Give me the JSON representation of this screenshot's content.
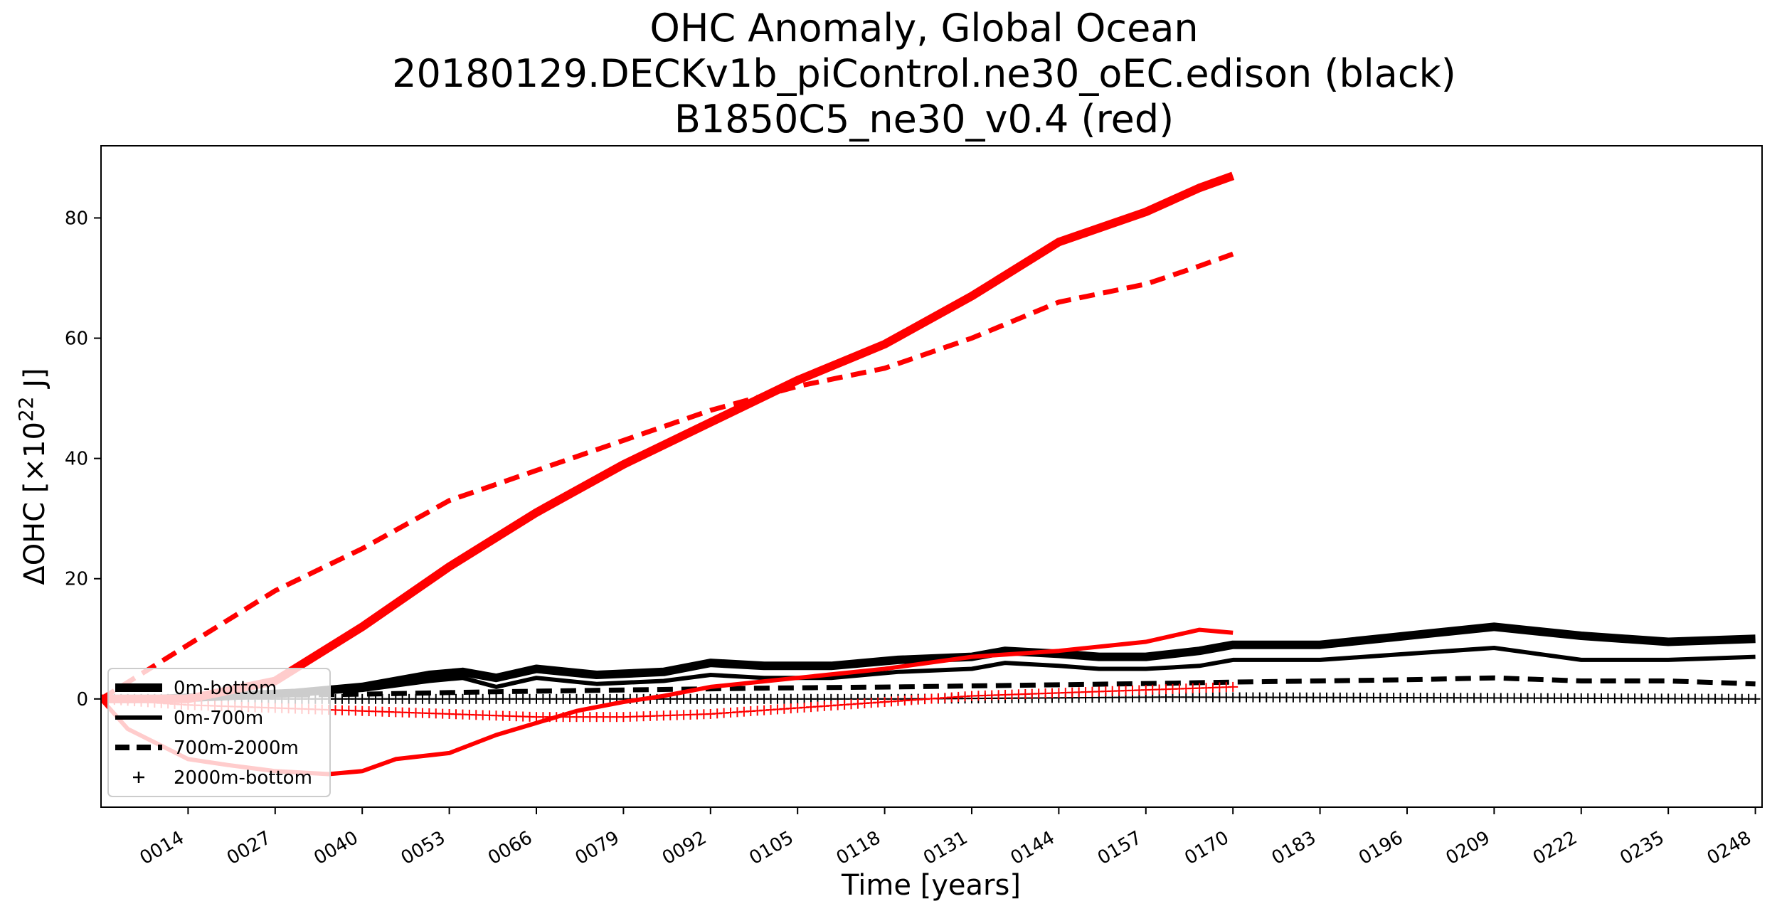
{
  "chart_data": {
    "type": "line",
    "title_lines": [
      "OHC Anomaly, Global Ocean",
      "20180129.DECKv1b_piControl.ne30_oEC.edison (black)",
      "B1850C5_ne30_v0.4 (red)"
    ],
    "xlabel": "Time [years]",
    "ylabel_main": "ΔOHC [×10",
    "ylabel_sup": "22",
    "ylabel_end": " J]",
    "xlim": [
      1,
      249
    ],
    "ylim": [
      -18,
      92
    ],
    "x_ticks": [
      14,
      27,
      40,
      53,
      66,
      79,
      92,
      105,
      118,
      131,
      144,
      157,
      170,
      183,
      196,
      209,
      222,
      235,
      248
    ],
    "x_tick_labels": [
      "0014",
      "0027",
      "0040",
      "0053",
      "0066",
      "0079",
      "0092",
      "0105",
      "0118",
      "0131",
      "0144",
      "0157",
      "0170",
      "0183",
      "0196",
      "0209",
      "0222",
      "0235",
      "0248"
    ],
    "y_ticks": [
      0,
      20,
      40,
      60,
      80
    ],
    "y_tick_labels": [
      "0",
      "20",
      "40",
      "60",
      "80"
    ],
    "grid": false,
    "legend_position": "lower-left",
    "legend": [
      {
        "label": "0m-bottom",
        "style": "thick"
      },
      {
        "label": "0m-700m",
        "style": "solid"
      },
      {
        "label": "700m-2000m",
        "style": "dashed"
      },
      {
        "label": "2000m-bottom",
        "style": "plus"
      }
    ],
    "series": [
      {
        "run": "black",
        "layer": "0m-bottom",
        "color": "#000000",
        "style": "thick",
        "x": [
          1,
          10,
          20,
          30,
          40,
          50,
          55,
          60,
          66,
          75,
          85,
          92,
          100,
          110,
          120,
          131,
          136,
          144,
          150,
          157,
          165,
          170,
          183,
          196,
          209,
          222,
          235,
          248
        ],
        "y": [
          0,
          0,
          0.5,
          1,
          2,
          4,
          4.5,
          3.5,
          5,
          4,
          4.5,
          6,
          5.5,
          5.5,
          6.5,
          7,
          8,
          7.5,
          7,
          7,
          8,
          9,
          9,
          10.5,
          12,
          10.5,
          9.5,
          10
        ]
      },
      {
        "run": "black",
        "layer": "0m-700m",
        "color": "#000000",
        "style": "solid",
        "x": [
          1,
          10,
          20,
          30,
          40,
          50,
          55,
          60,
          66,
          75,
          85,
          92,
          100,
          110,
          120,
          131,
          136,
          144,
          150,
          157,
          165,
          170,
          183,
          196,
          209,
          222,
          235,
          248
        ],
        "y": [
          0,
          0,
          0.3,
          0.8,
          1.5,
          3,
          3.5,
          2,
          3.5,
          2.5,
          3,
          4,
          3.5,
          3.5,
          4.5,
          5,
          6,
          5.5,
          5,
          5,
          5.5,
          6.5,
          6.5,
          7.5,
          8.5,
          6.5,
          6.5,
          7
        ]
      },
      {
        "run": "black",
        "layer": "700m-2000m",
        "color": "#000000",
        "style": "dashed",
        "x": [
          1,
          20,
          40,
          60,
          80,
          100,
          120,
          140,
          160,
          170,
          183,
          196,
          209,
          222,
          235,
          248
        ],
        "y": [
          0,
          0.5,
          0.8,
          1.2,
          1.5,
          1.8,
          2,
          2.3,
          2.6,
          2.8,
          3,
          3.2,
          3.5,
          3,
          3,
          2.5
        ]
      },
      {
        "run": "black",
        "layer": "2000m-bottom",
        "color": "#000000",
        "style": "plus",
        "x": [
          1,
          40,
          80,
          120,
          160,
          200,
          248
        ],
        "y": [
          0,
          0,
          0,
          0,
          0.3,
          0.2,
          0
        ]
      },
      {
        "run": "red",
        "layer": "0m-bottom",
        "color": "#ff0000",
        "style": "thick",
        "x": [
          1,
          14,
          27,
          40,
          53,
          66,
          79,
          92,
          105,
          118,
          131,
          144,
          157,
          165,
          170
        ],
        "y": [
          0,
          0,
          3,
          12,
          22,
          31,
          39,
          46,
          53,
          59,
          67,
          76,
          81,
          85,
          87
        ]
      },
      {
        "run": "red",
        "layer": "0m-700m",
        "color": "#ff0000",
        "style": "solid",
        "x": [
          1,
          5,
          14,
          20,
          27,
          35,
          40,
          45,
          53,
          60,
          66,
          72,
          79,
          85,
          92,
          105,
          118,
          131,
          144,
          157,
          165,
          170
        ],
        "y": [
          0,
          -5,
          -10,
          -11,
          -12,
          -12.5,
          -12,
          -10,
          -9,
          -6,
          -4,
          -2,
          -0.5,
          0.5,
          2,
          3.5,
          5,
          7,
          8,
          9.5,
          11.5,
          11
        ]
      },
      {
        "run": "red",
        "layer": "700m-2000m",
        "color": "#ff0000",
        "style": "dashed",
        "x": [
          1,
          14,
          27,
          40,
          53,
          66,
          79,
          92,
          105,
          118,
          131,
          144,
          157,
          165,
          170
        ],
        "y": [
          0,
          9,
          18,
          25,
          33,
          38,
          43,
          48,
          52,
          55,
          60,
          66,
          69,
          72,
          74
        ]
      },
      {
        "run": "red",
        "layer": "2000m-bottom",
        "color": "#ff0000",
        "style": "plus",
        "x": [
          1,
          14,
          27,
          40,
          53,
          66,
          79,
          92,
          105,
          118,
          131,
          144,
          157,
          165,
          170
        ],
        "y": [
          0,
          -1,
          -1.5,
          -2,
          -2.5,
          -3,
          -3,
          -2.5,
          -1.5,
          -0.5,
          0.5,
          1,
          1.5,
          1.8,
          2
        ]
      }
    ]
  }
}
